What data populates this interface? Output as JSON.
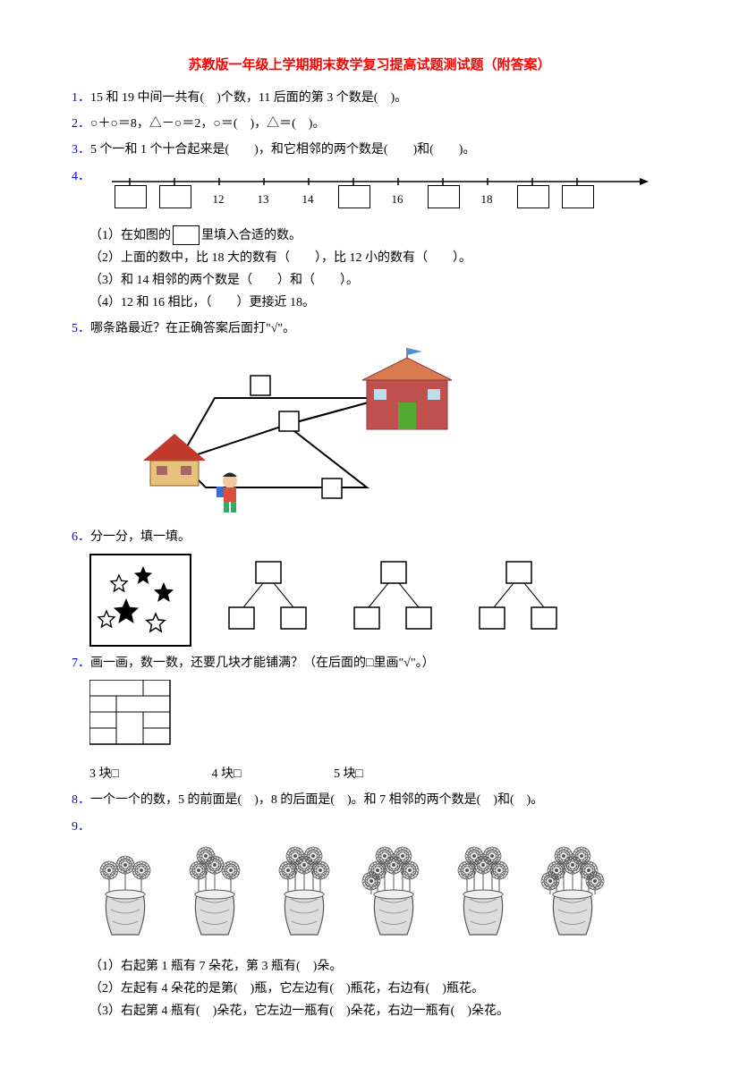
{
  "title": "苏教版一年级上学期期末数学复习提高试题测试题（附答案）",
  "q1": {
    "num": "1．",
    "text": "15 和 19 中间一共有(　)个数，11 后面的第 3 个数是(　)。"
  },
  "q2": {
    "num": "2．",
    "text": "○＋○＝8，△－○＝2，○＝(　)，△＝(　)。"
  },
  "q3": {
    "num": "3．",
    "text": "5 个一和 1 个十合起来是(　　)，和它相邻的两个数是(　　)和(　　)。"
  },
  "q4": {
    "num": "4．",
    "shown_numbers": [
      "12",
      "13",
      "14",
      "16",
      "18"
    ],
    "sub1_a": "（1）在如图的",
    "sub1_b": "里填入合适的数。",
    "sub2": "（2）上面的数中，比 18 大的数有（　　），比 12 小的数有（　　）。",
    "sub3": "（3）和 14 相邻的两个数是（　　）和（　　）。",
    "sub4": "（4）12 和 16 相比，（　　）更接近 18。"
  },
  "q5": {
    "num": "5．",
    "text": "哪条路最近？在正确答案后面打\"√\"。"
  },
  "q6": {
    "num": "6．",
    "text": "分一分，填一填。"
  },
  "q7": {
    "num": "7．",
    "text": "画一画，数一数，还要几块才能铺满？（在后面的□里画\"√\"。）",
    "opt1": "3 块□",
    "opt2": "4 块□",
    "opt3": "5 块□"
  },
  "q8": {
    "num": "8．",
    "text": "一个一个的数，5 的前面是(　)，8 的后面是(　)。和 7 相邻的两个数是(　)和(　)。"
  },
  "q9": {
    "num": "9．",
    "sub1": "（1）右起第 1 瓶有 7 朵花，第 3 瓶有(　)朵。",
    "sub2": "（2）左起有 4 朵花的是第(　)瓶，它左边有(　)瓶花，右边有(　)瓶花。",
    "sub3": "（3）右起第 4 瓶有(　)朵花，它左边一瓶有(　)朵花，右边一瓶有(　)朵花。"
  },
  "colors": {
    "title": "#ff0000",
    "qnum": "#0000ee",
    "text": "#000000"
  }
}
